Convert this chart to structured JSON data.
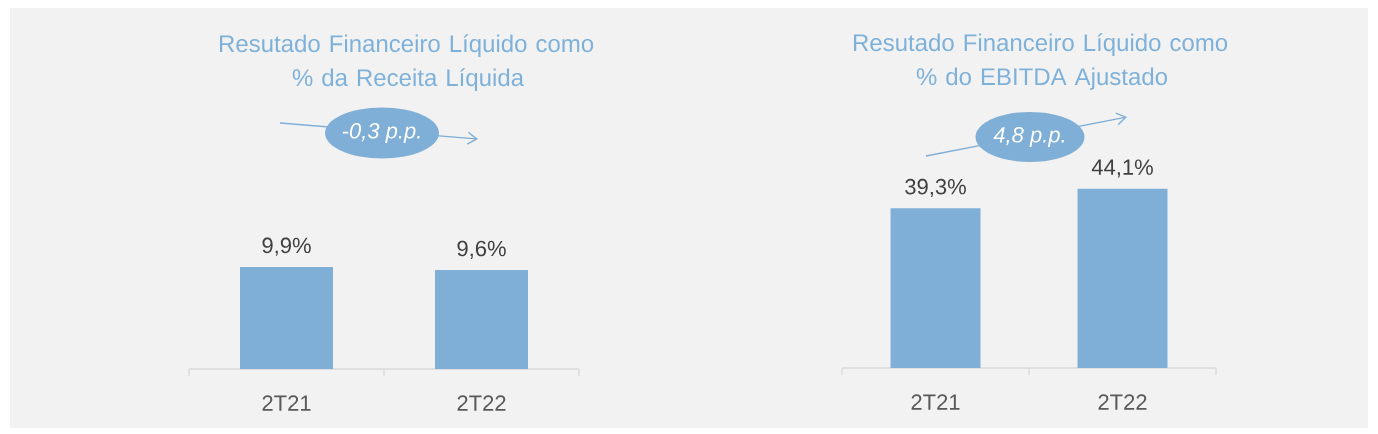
{
  "chart_data": [
    {
      "type": "bar",
      "title": "Resutado Financeiro Líquido como % da Receita Líquida",
      "categories": [
        "2T21",
        "2T22"
      ],
      "values": [
        9.9,
        9.6
      ],
      "value_labels": [
        "9,9%",
        "9,6%"
      ],
      "color": "#7fafd6",
      "annotations": [
        "-0,3 p.p."
      ]
    },
    {
      "type": "bar",
      "title": "Resutado Financeiro Líquido como % do EBITDA Ajustado",
      "categories": [
        "2T21",
        "2T22"
      ],
      "values": [
        39.3,
        44.1
      ],
      "value_labels": [
        "39,3%",
        "44,1%"
      ],
      "color": "#7fafd6",
      "annotations": [
        "4,8 p.p."
      ]
    }
  ]
}
